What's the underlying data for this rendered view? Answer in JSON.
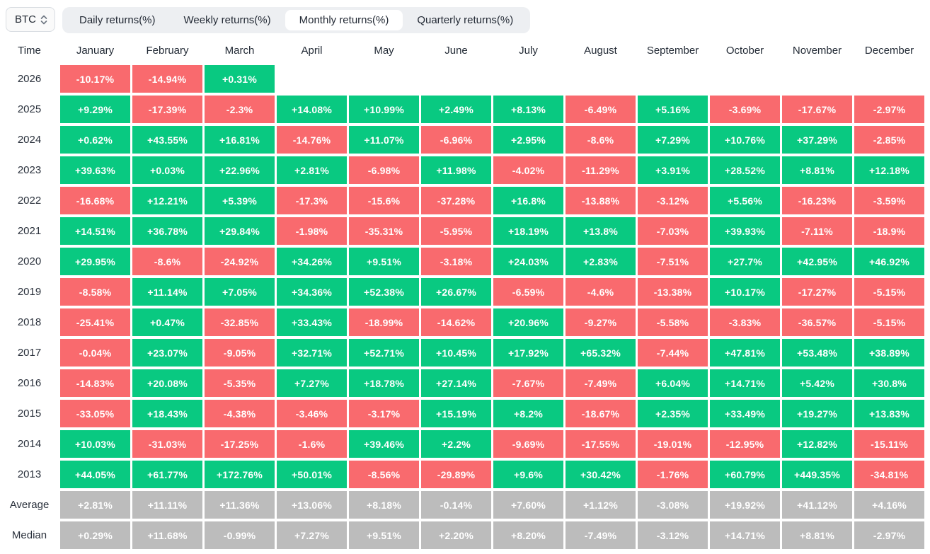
{
  "toolbar": {
    "asset_selector": {
      "value": "BTC"
    },
    "tabs": [
      {
        "label": "Daily returns(%)",
        "active": false
      },
      {
        "label": "Weekly returns(%)",
        "active": false
      },
      {
        "label": "Monthly returns(%)",
        "active": true
      },
      {
        "label": "Quarterly returns(%)",
        "active": false
      }
    ]
  },
  "colors": {
    "positive": "#09c981",
    "negative": "#f96a6e",
    "summary": "#bcbcbc",
    "cell_text": "#ffffff"
  },
  "chart_data": {
    "type": "heatmap",
    "title": "BTC Monthly returns(%)",
    "time_header": "Time",
    "month_headers": [
      "January",
      "February",
      "March",
      "April",
      "May",
      "June",
      "July",
      "August",
      "September",
      "October",
      "November",
      "December"
    ],
    "rows": [
      {
        "label": "2026",
        "type": "year",
        "cells": [
          "-10.17%",
          "-14.94%",
          "+0.31%",
          "",
          "",
          "",
          "",
          "",
          "",
          "",
          "",
          ""
        ]
      },
      {
        "label": "2025",
        "type": "year",
        "cells": [
          "+9.29%",
          "-17.39%",
          "-2.3%",
          "+14.08%",
          "+10.99%",
          "+2.49%",
          "+8.13%",
          "-6.49%",
          "+5.16%",
          "-3.69%",
          "-17.67%",
          "-2.97%"
        ]
      },
      {
        "label": "2024",
        "type": "year",
        "cells": [
          "+0.62%",
          "+43.55%",
          "+16.81%",
          "-14.76%",
          "+11.07%",
          "-6.96%",
          "+2.95%",
          "-8.6%",
          "+7.29%",
          "+10.76%",
          "+37.29%",
          "-2.85%"
        ]
      },
      {
        "label": "2023",
        "type": "year",
        "cells": [
          "+39.63%",
          "+0.03%",
          "+22.96%",
          "+2.81%",
          "-6.98%",
          "+11.98%",
          "-4.02%",
          "-11.29%",
          "+3.91%",
          "+28.52%",
          "+8.81%",
          "+12.18%"
        ]
      },
      {
        "label": "2022",
        "type": "year",
        "cells": [
          "-16.68%",
          "+12.21%",
          "+5.39%",
          "-17.3%",
          "-15.6%",
          "-37.28%",
          "+16.8%",
          "-13.88%",
          "-3.12%",
          "+5.56%",
          "-16.23%",
          "-3.59%"
        ]
      },
      {
        "label": "2021",
        "type": "year",
        "cells": [
          "+14.51%",
          "+36.78%",
          "+29.84%",
          "-1.98%",
          "-35.31%",
          "-5.95%",
          "+18.19%",
          "+13.8%",
          "-7.03%",
          "+39.93%",
          "-7.11%",
          "-18.9%"
        ]
      },
      {
        "label": "2020",
        "type": "year",
        "cells": [
          "+29.95%",
          "-8.6%",
          "-24.92%",
          "+34.26%",
          "+9.51%",
          "-3.18%",
          "+24.03%",
          "+2.83%",
          "-7.51%",
          "+27.7%",
          "+42.95%",
          "+46.92%"
        ]
      },
      {
        "label": "2019",
        "type": "year",
        "cells": [
          "-8.58%",
          "+11.14%",
          "+7.05%",
          "+34.36%",
          "+52.38%",
          "+26.67%",
          "-6.59%",
          "-4.6%",
          "-13.38%",
          "+10.17%",
          "-17.27%",
          "-5.15%"
        ]
      },
      {
        "label": "2018",
        "type": "year",
        "cells": [
          "-25.41%",
          "+0.47%",
          "-32.85%",
          "+33.43%",
          "-18.99%",
          "-14.62%",
          "+20.96%",
          "-9.27%",
          "-5.58%",
          "-3.83%",
          "-36.57%",
          "-5.15%"
        ]
      },
      {
        "label": "2017",
        "type": "year",
        "cells": [
          "-0.04%",
          "+23.07%",
          "-9.05%",
          "+32.71%",
          "+52.71%",
          "+10.45%",
          "+17.92%",
          "+65.32%",
          "-7.44%",
          "+47.81%",
          "+53.48%",
          "+38.89%"
        ]
      },
      {
        "label": "2016",
        "type": "year",
        "cells": [
          "-14.83%",
          "+20.08%",
          "-5.35%",
          "+7.27%",
          "+18.78%",
          "+27.14%",
          "-7.67%",
          "-7.49%",
          "+6.04%",
          "+14.71%",
          "+5.42%",
          "+30.8%"
        ]
      },
      {
        "label": "2015",
        "type": "year",
        "cells": [
          "-33.05%",
          "+18.43%",
          "-4.38%",
          "-3.46%",
          "-3.17%",
          "+15.19%",
          "+8.2%",
          "-18.67%",
          "+2.35%",
          "+33.49%",
          "+19.27%",
          "+13.83%"
        ]
      },
      {
        "label": "2014",
        "type": "year",
        "cells": [
          "+10.03%",
          "-31.03%",
          "-17.25%",
          "-1.6%",
          "+39.46%",
          "+2.2%",
          "-9.69%",
          "-17.55%",
          "-19.01%",
          "-12.95%",
          "+12.82%",
          "-15.11%"
        ]
      },
      {
        "label": "2013",
        "type": "year",
        "cells": [
          "+44.05%",
          "+61.77%",
          "+172.76%",
          "+50.01%",
          "-8.56%",
          "-29.89%",
          "+9.6%",
          "+30.42%",
          "-1.76%",
          "+60.79%",
          "+449.35%",
          "-34.81%"
        ]
      },
      {
        "label": "Average",
        "type": "summary",
        "cells": [
          "+2.81%",
          "+11.11%",
          "+11.36%",
          "+13.06%",
          "+8.18%",
          "-0.14%",
          "+7.60%",
          "+1.12%",
          "-3.08%",
          "+19.92%",
          "+41.12%",
          "+4.16%"
        ]
      },
      {
        "label": "Median",
        "type": "summary",
        "cells": [
          "+0.29%",
          "+11.68%",
          "-0.99%",
          "+7.27%",
          "+9.51%",
          "+2.20%",
          "+8.20%",
          "-7.49%",
          "-3.12%",
          "+14.71%",
          "+8.81%",
          "-2.97%"
        ]
      }
    ]
  }
}
